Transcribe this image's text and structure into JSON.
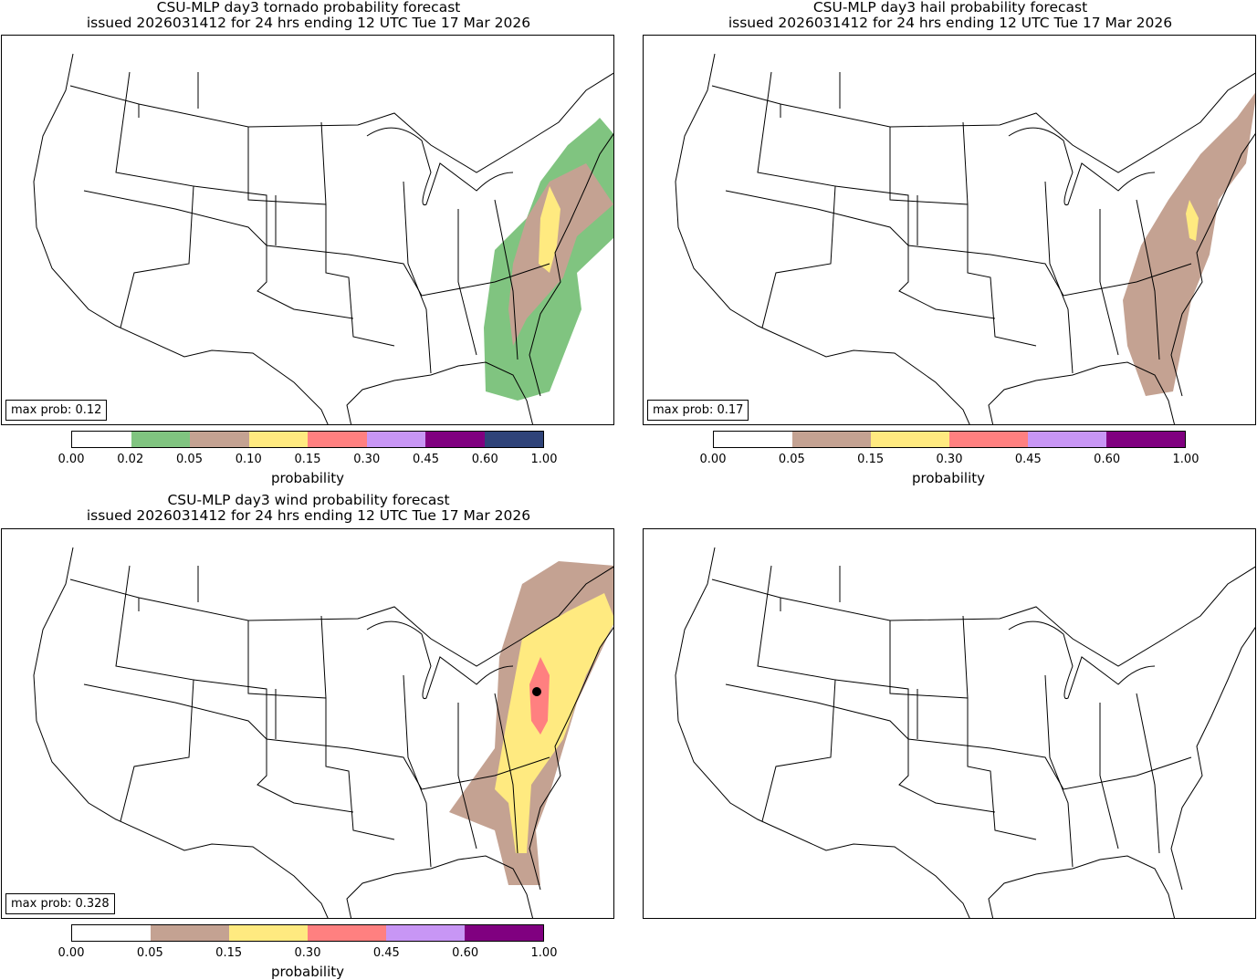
{
  "panels": [
    {
      "title_line1": "CSU-MLP day3 tornado probability forecast",
      "title_line2": "issued 2026031412 for 24 hrs ending 12 UTC Tue 17 Mar 2026",
      "max_prob": "max prob: 0.12",
      "colorbar": {
        "label": "probability",
        "ticks": [
          "0.00",
          "0.02",
          "0.05",
          "0.10",
          "0.15",
          "0.30",
          "0.45",
          "0.60",
          "1.00"
        ],
        "colors": [
          "#ffffff",
          "#80c480",
          "#c4a292",
          "#ffea80",
          "#ff8080",
          "#c896f5",
          "#800080",
          "#2f4379"
        ]
      }
    },
    {
      "title_line1": "CSU-MLP day3 hail probability forecast",
      "title_line2": "issued 2026031412 for 24 hrs ending 12 UTC Tue 17 Mar 2026",
      "max_prob": "max prob: 0.17",
      "colorbar": {
        "label": "probability",
        "ticks": [
          "0.00",
          "0.05",
          "0.15",
          "0.30",
          "0.45",
          "0.60",
          "1.00"
        ],
        "colors": [
          "#ffffff",
          "#c4a292",
          "#ffea80",
          "#ff8080",
          "#c896f5",
          "#800080"
        ]
      }
    },
    {
      "title_line1": "CSU-MLP day3 wind probability forecast",
      "title_line2": "issued 2026031412 for 24 hrs ending 12 UTC Tue 17 Mar 2026",
      "max_prob": "max prob: 0.328",
      "colorbar": {
        "label": "probability",
        "ticks": [
          "0.00",
          "0.05",
          "0.15",
          "0.30",
          "0.45",
          "0.60",
          "1.00"
        ],
        "colors": [
          "#ffffff",
          "#c4a292",
          "#ffea80",
          "#ff8080",
          "#c896f5",
          "#800080"
        ]
      }
    }
  ]
}
